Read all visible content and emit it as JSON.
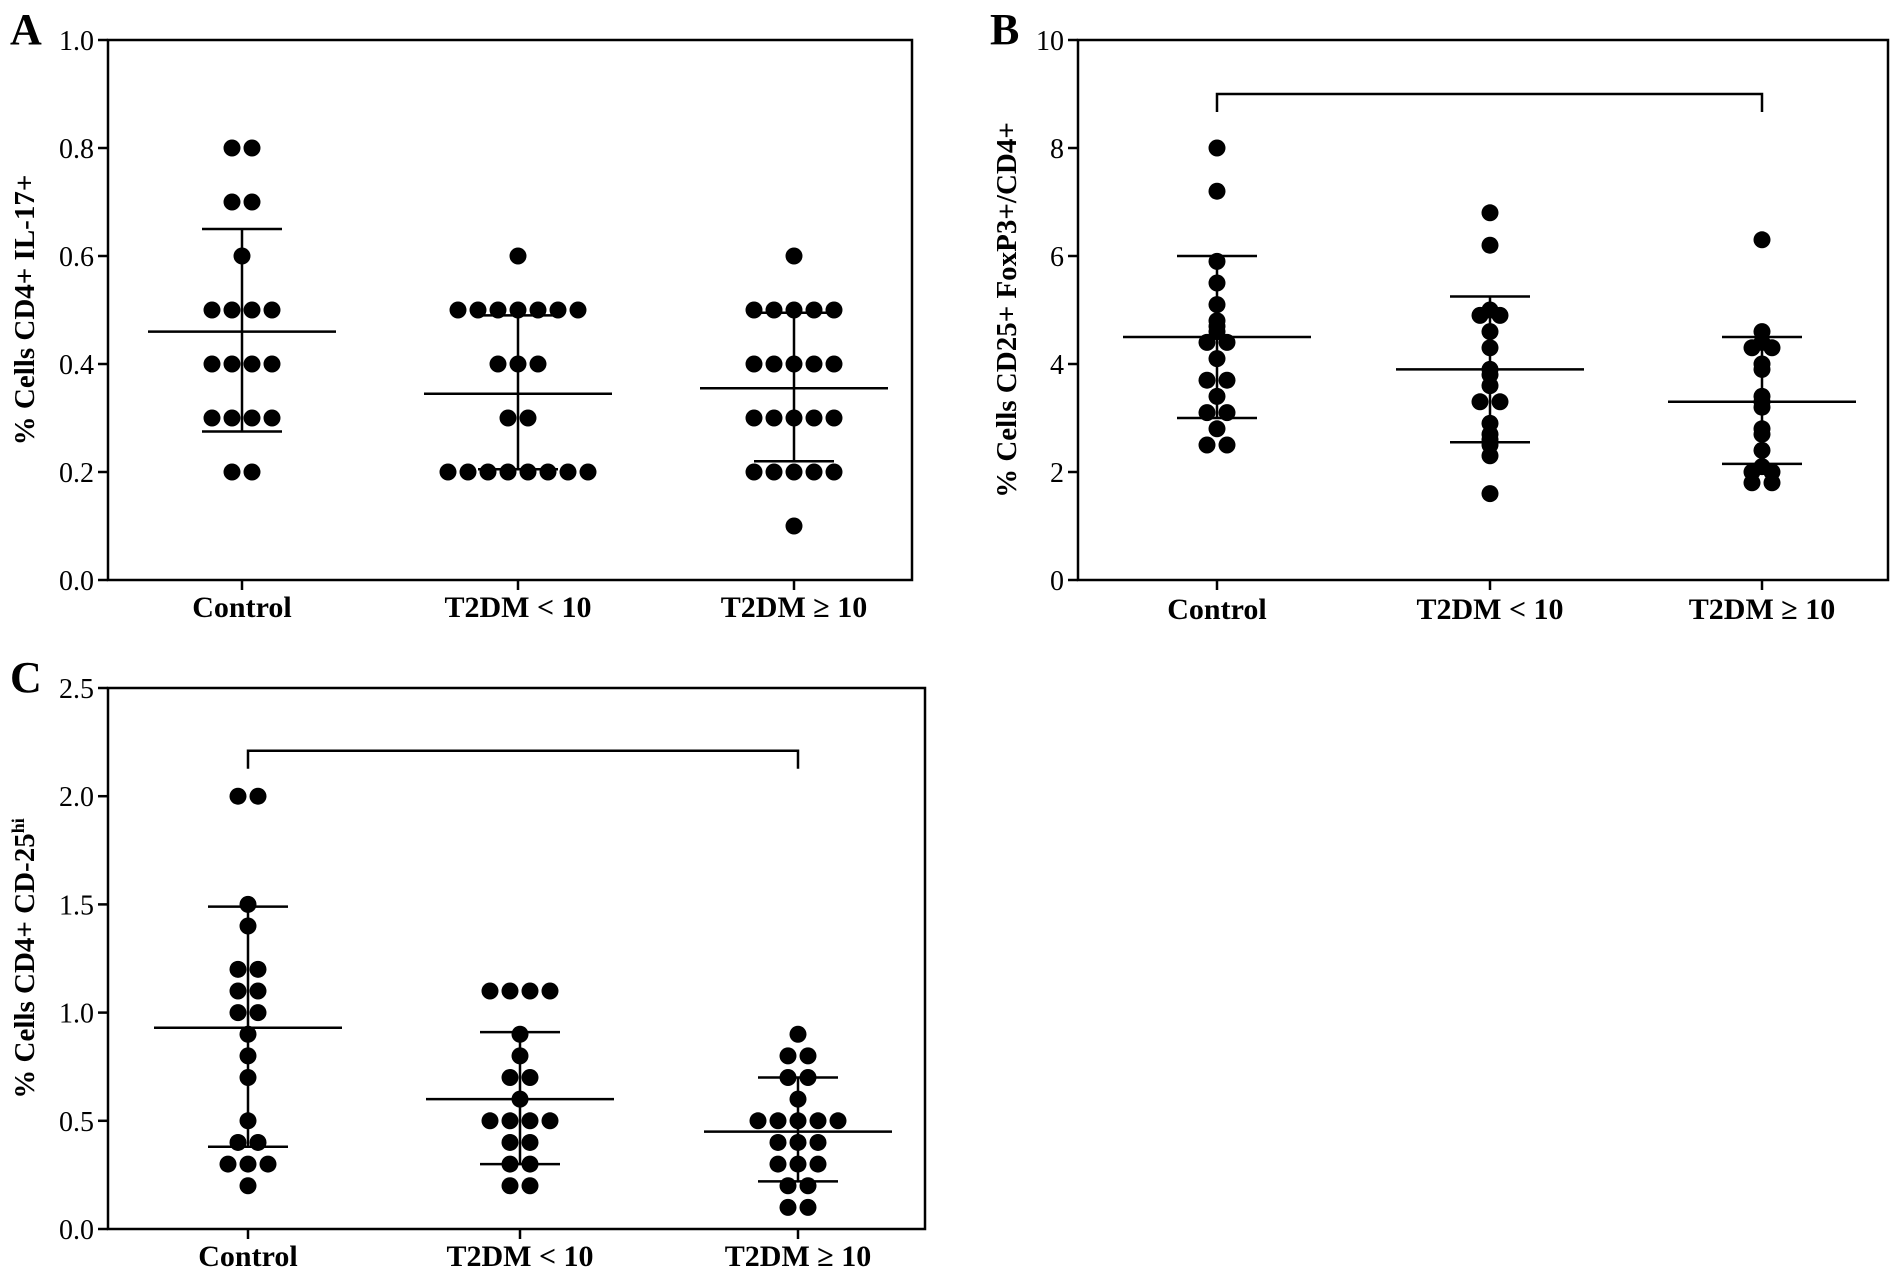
{
  "chart_data": [
    {
      "panel": "A",
      "type": "scatter",
      "ylabel": "% Cells CD4+ IL-17+",
      "ylim": [
        0,
        1.0
      ],
      "yticks": [
        "0.0",
        "0.2",
        "0.4",
        "0.6",
        "0.8",
        "1.0"
      ],
      "categories": [
        "Control",
        "T2DM < 10",
        "T2DM ≥ 10"
      ],
      "series": [
        {
          "category": "Control",
          "values": [
            0.8,
            0.8,
            0.7,
            0.7,
            0.6,
            0.5,
            0.5,
            0.5,
            0.5,
            0.4,
            0.4,
            0.4,
            0.4,
            0.3,
            0.3,
            0.3,
            0.3,
            0.2,
            0.2
          ],
          "mean": 0.46,
          "sd_low": 0.275,
          "sd_high": 0.65
        },
        {
          "category": "T2DM < 10",
          "values": [
            0.6,
            0.5,
            0.5,
            0.5,
            0.5,
            0.5,
            0.5,
            0.5,
            0.4,
            0.4,
            0.4,
            0.3,
            0.3,
            0.2,
            0.2,
            0.2,
            0.2,
            0.2,
            0.2,
            0.2,
            0.2
          ],
          "mean": 0.345,
          "sd_low": 0.205,
          "sd_high": 0.49
        },
        {
          "category": "T2DM ≥ 10",
          "values": [
            0.6,
            0.5,
            0.5,
            0.5,
            0.5,
            0.5,
            0.4,
            0.4,
            0.4,
            0.4,
            0.4,
            0.3,
            0.3,
            0.3,
            0.3,
            0.3,
            0.2,
            0.2,
            0.2,
            0.2,
            0.2,
            0.1
          ],
          "mean": 0.355,
          "sd_low": 0.22,
          "sd_high": 0.495
        }
      ],
      "grid": false
    },
    {
      "panel": "B",
      "type": "scatter",
      "ylabel": "% Cells CD25+ FoxP3+/CD4+",
      "ylim": [
        0,
        10
      ],
      "yticks": [
        "0",
        "2",
        "4",
        "6",
        "8",
        "10"
      ],
      "categories": [
        "Control",
        "T2DM < 10",
        "T2DM ≥ 10"
      ],
      "series": [
        {
          "category": "Control",
          "values": [
            8.0,
            7.2,
            5.9,
            5.5,
            5.1,
            4.8,
            4.7,
            4.6,
            4.4,
            4.4,
            4.1,
            3.7,
            3.7,
            3.4,
            3.1,
            3.1,
            2.8,
            2.5,
            2.5
          ],
          "mean": 4.5,
          "sd_low": 3.0,
          "sd_high": 6.0
        },
        {
          "category": "T2DM < 10",
          "values": [
            6.8,
            6.2,
            5.0,
            4.9,
            4.9,
            4.6,
            4.3,
            3.9,
            3.8,
            3.6,
            3.3,
            3.3,
            2.9,
            2.7,
            2.6,
            2.5,
            2.3,
            1.6
          ],
          "mean": 3.9,
          "sd_low": 2.55,
          "sd_high": 5.25
        },
        {
          "category": "T2DM ≥ 10",
          "values": [
            6.3,
            4.6,
            4.4,
            4.3,
            4.3,
            4.0,
            3.9,
            3.4,
            3.3,
            3.2,
            2.8,
            2.7,
            2.4,
            2.1,
            2.0,
            2.0,
            1.8,
            1.8
          ],
          "mean": 3.3,
          "sd_low": 2.15,
          "sd_high": 4.5
        }
      ],
      "bracket": {
        "from": "Control",
        "to": "T2DM ≥ 10",
        "y": 9.0
      },
      "grid": false
    },
    {
      "panel": "C",
      "type": "scatter",
      "ylabel": "% Cells CD4+ CD-25",
      "ylabel_sup": "hi",
      "ylim": [
        0,
        2.5
      ],
      "yticks": [
        "0.0",
        "0.5",
        "1.0",
        "1.5",
        "2.0",
        "2.5"
      ],
      "categories": [
        "Control",
        "T2DM < 10",
        "T2DM ≥ 10"
      ],
      "series": [
        {
          "category": "Control",
          "values": [
            2.0,
            2.0,
            1.5,
            1.4,
            1.2,
            1.2,
            1.1,
            1.1,
            1.0,
            1.0,
            0.9,
            0.8,
            0.7,
            0.5,
            0.4,
            0.4,
            0.3,
            0.3,
            0.3,
            0.2
          ],
          "mean": 0.93,
          "sd_low": 0.38,
          "sd_high": 1.49
        },
        {
          "category": "T2DM < 10",
          "values": [
            1.1,
            1.1,
            1.1,
            1.1,
            0.9,
            0.8,
            0.7,
            0.7,
            0.6,
            0.5,
            0.5,
            0.5,
            0.5,
            0.4,
            0.4,
            0.3,
            0.3,
            0.2,
            0.2
          ],
          "mean": 0.6,
          "sd_low": 0.3,
          "sd_high": 0.91
        },
        {
          "category": "T2DM ≥ 10",
          "values": [
            0.9,
            0.8,
            0.8,
            0.7,
            0.7,
            0.6,
            0.5,
            0.5,
            0.5,
            0.5,
            0.5,
            0.4,
            0.4,
            0.4,
            0.3,
            0.3,
            0.3,
            0.2,
            0.2,
            0.1,
            0.1
          ],
          "mean": 0.45,
          "sd_low": 0.22,
          "sd_high": 0.7
        }
      ],
      "bracket": {
        "from": "Control",
        "to": "T2DM ≥ 10",
        "y": 2.21
      },
      "grid": false
    }
  ]
}
